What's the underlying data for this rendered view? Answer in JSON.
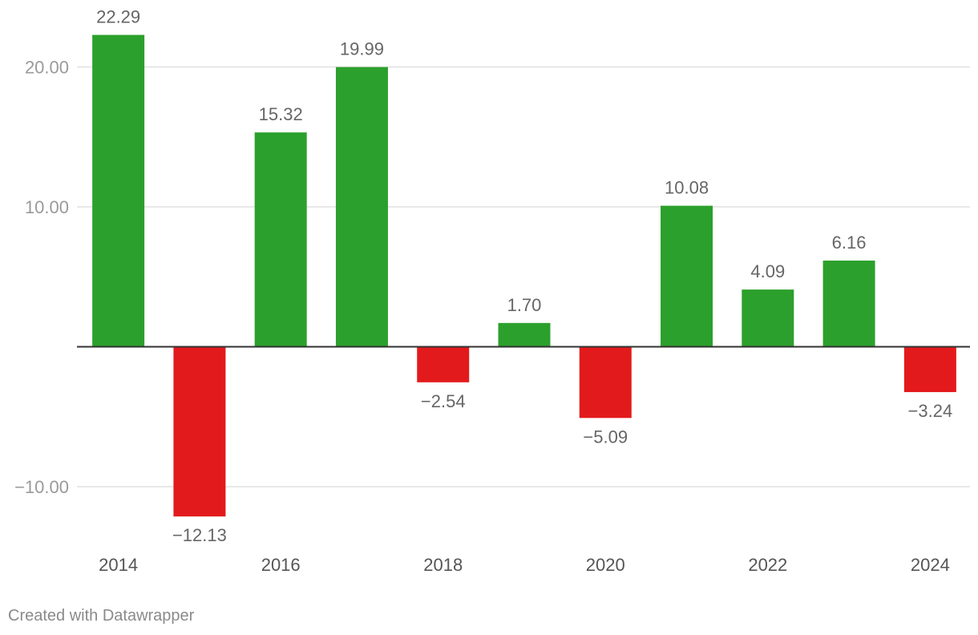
{
  "chart_data": {
    "type": "bar",
    "categories": [
      "2014",
      "2015",
      "2016",
      "2017",
      "2018",
      "2019",
      "2020",
      "2021",
      "2022",
      "2023",
      "2024"
    ],
    "values": [
      22.29,
      -12.13,
      15.32,
      19.99,
      -2.54,
      1.7,
      -5.09,
      10.08,
      4.09,
      6.16,
      -3.24
    ],
    "value_labels": [
      "22.29",
      "−12.13",
      "15.32",
      "19.99",
      "−2.54",
      "1.70",
      "−5.09",
      "10.08",
      "4.09",
      "6.16",
      "−3.24"
    ],
    "x_tick_labels": [
      "2014",
      "",
      "2016",
      "",
      "2018",
      "",
      "2020",
      "",
      "2022",
      "",
      "2024"
    ],
    "y_ticks": [
      20,
      10,
      -10
    ],
    "y_tick_labels": [
      "20.00",
      "10.00",
      "−10.00"
    ],
    "ylim": [
      -14.5,
      24.5
    ],
    "grid": true,
    "colors": {
      "positive": "#2ca02c",
      "negative": "#e31a1c",
      "grid": "#e0e0e0",
      "axis": "#333333",
      "tick_text": "#9a9a9a",
      "label_text": "#666666"
    },
    "title": "",
    "xlabel": "",
    "ylabel": ""
  },
  "footer": {
    "credit": "Created with Datawrapper"
  }
}
